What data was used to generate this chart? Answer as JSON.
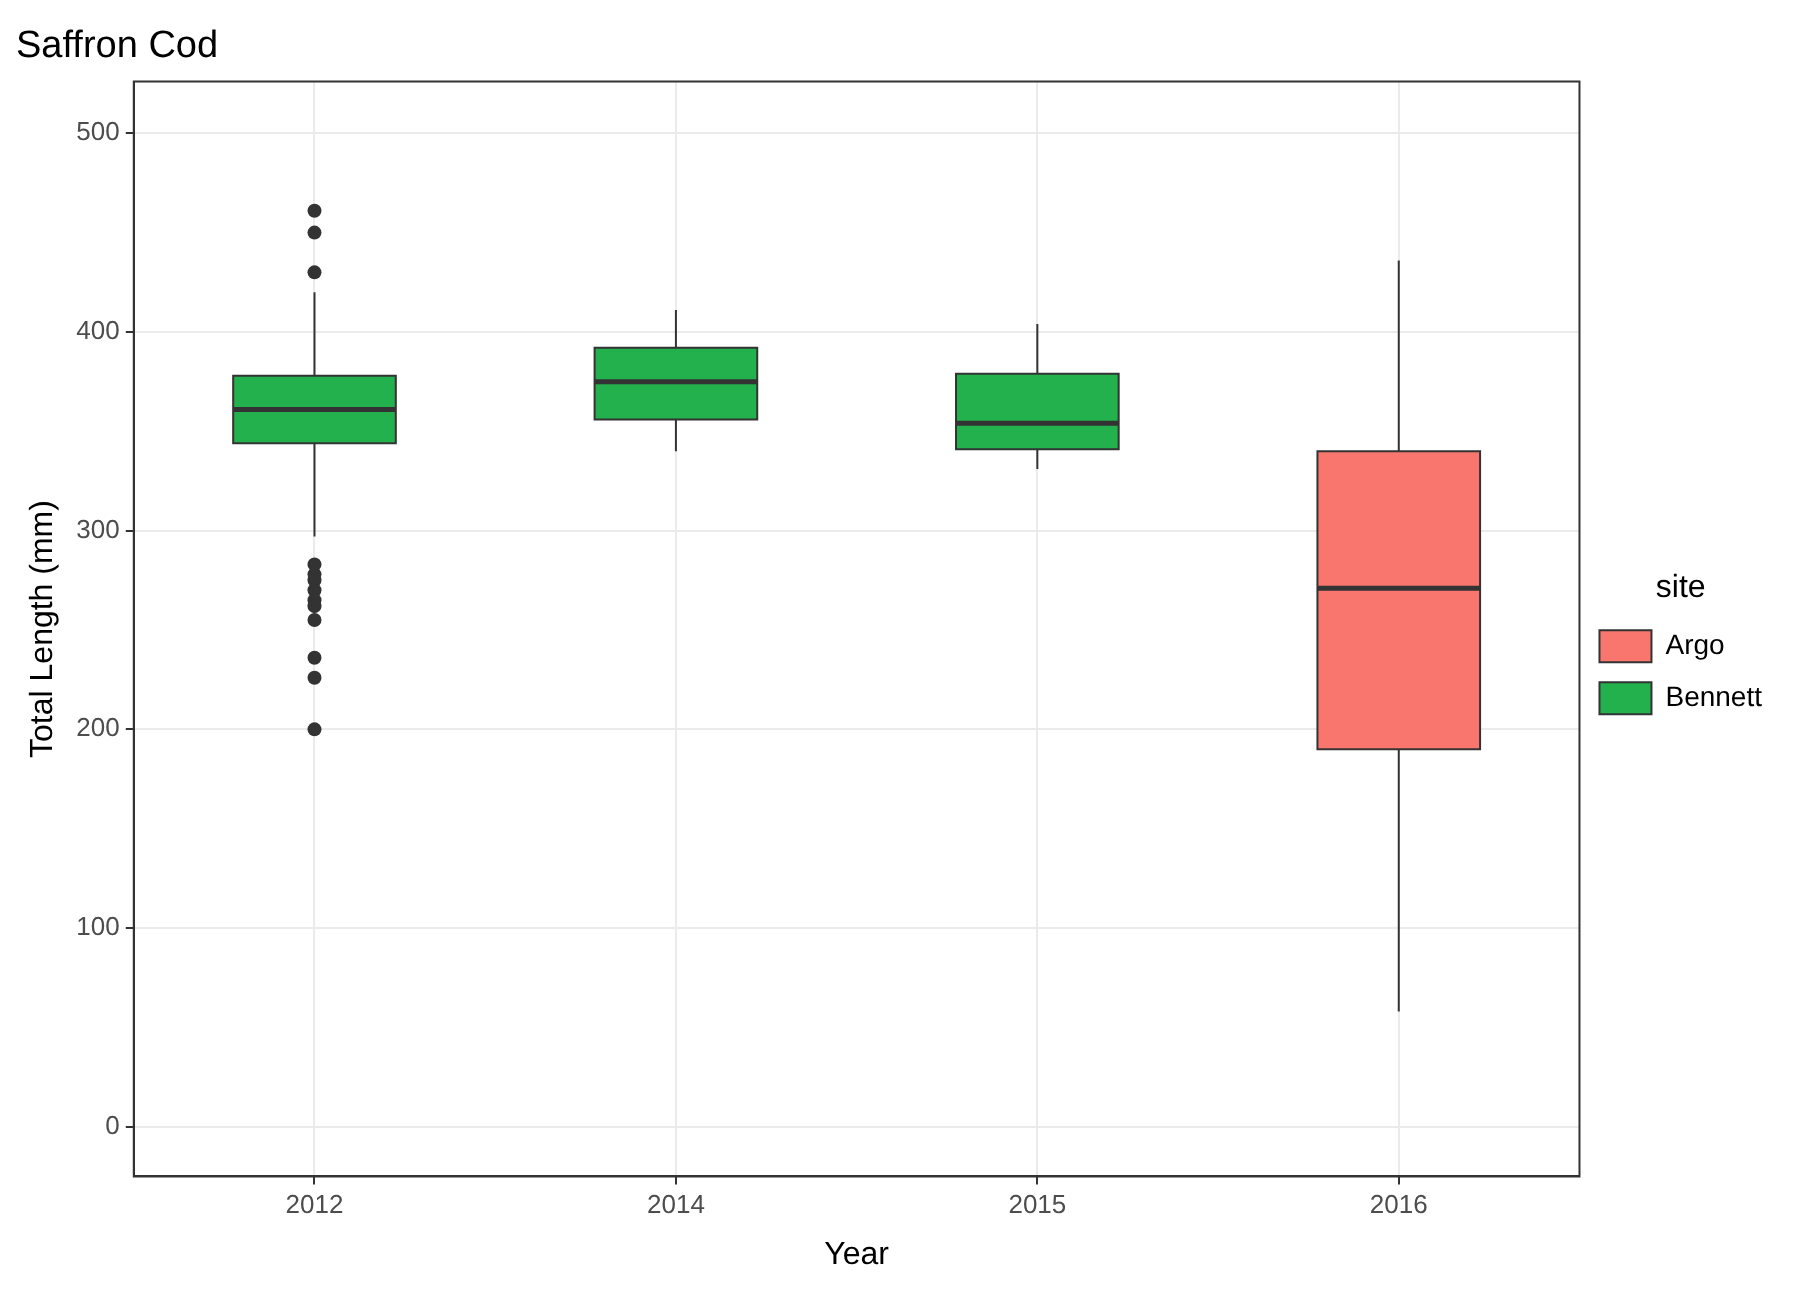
{
  "chart_data": {
    "type": "box",
    "title": "Saffron Cod",
    "xlabel": "Year",
    "ylabel": "Total Length (mm)",
    "legend_title": "site",
    "categories": [
      "2012",
      "2014",
      "2015",
      "2016"
    ],
    "series": [
      {
        "name": "Argo",
        "color": "#f8766d",
        "boxes": [
          null,
          null,
          null,
          {
            "low": 58,
            "q1": 190,
            "median": 271,
            "q3": 340,
            "high": 436
          }
        ]
      },
      {
        "name": "Bennett",
        "color": "#22b14c",
        "boxes": [
          {
            "low": 297,
            "q1": 344,
            "median": 361,
            "q3": 378,
            "high": 420,
            "outliers": [
              461,
              450,
              430,
              283,
              278,
              275,
              270,
              265,
              262,
              255,
              236,
              226,
              200
            ]
          },
          {
            "low": 340,
            "q1": 356,
            "median": 375,
            "q3": 392,
            "high": 411
          },
          {
            "low": 331,
            "q1": 341,
            "median": 354,
            "q3": 379,
            "high": 404
          },
          null
        ]
      }
    ],
    "ylim": [
      -25,
      526
    ],
    "yticks": [
      0,
      100,
      200,
      300,
      400,
      500
    ],
    "grid": true,
    "legend": "right"
  }
}
